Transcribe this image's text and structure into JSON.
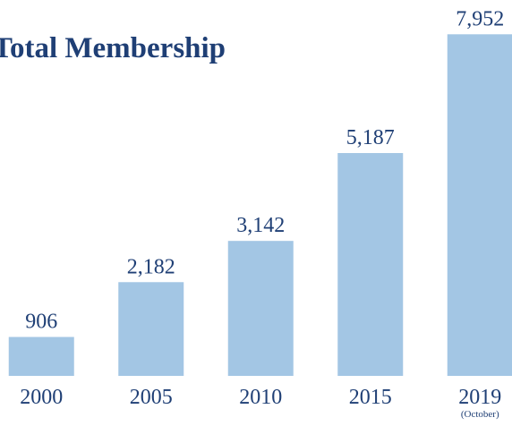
{
  "chart_data": {
    "type": "bar",
    "title": "Total Membership",
    "categories": [
      "2000",
      "2005",
      "2010",
      "2015",
      "2019"
    ],
    "values": [
      906,
      2182,
      3142,
      5187,
      7952
    ],
    "value_labels": [
      "906",
      "2,182",
      "3,142",
      "5,187",
      "7,952"
    ],
    "annotation": "(October)",
    "color": "#a3c6e4",
    "ylim": [
      0,
      8000
    ]
  }
}
